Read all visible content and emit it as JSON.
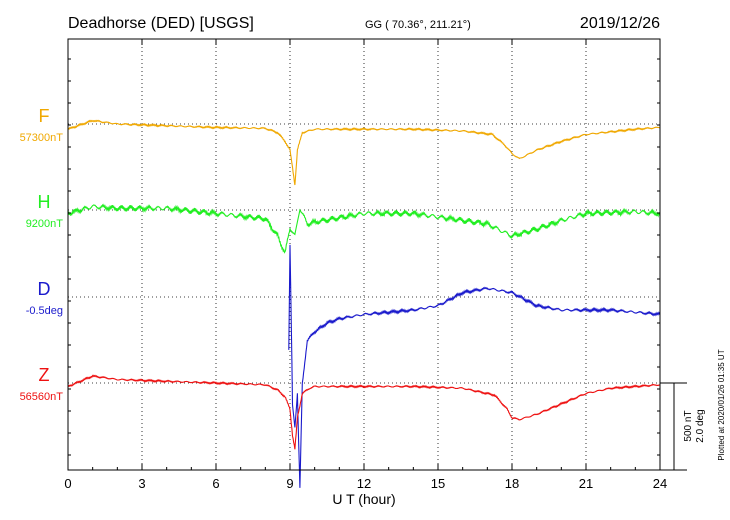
{
  "header": {
    "title": "Deadhorse (DED)  [USGS]",
    "coords": "GG ( 70.36°, 211.21°)",
    "date": "2019/12/26"
  },
  "plotted_note": "Plotted at 2020/01/26 01:35 UT",
  "scale_bar": {
    "nt": "500 nT",
    "deg": "2.0 deg"
  },
  "chart_data": {
    "type": "line",
    "xlabel": "U T (hour)",
    "xlim": [
      0,
      24
    ],
    "xticks": [
      0,
      3,
      6,
      9,
      12,
      15,
      18,
      21,
      24
    ],
    "grid": true,
    "series": [
      {
        "name": "F",
        "baseline_label": "57300nT",
        "color": "#f0a800",
        "x": [
          0,
          1,
          2,
          4,
          6,
          8,
          8.5,
          8.8,
          9.0,
          9.1,
          9.2,
          9.3,
          9.5,
          10,
          12,
          14,
          16,
          17.2,
          17.7,
          18,
          18.3,
          19,
          20,
          21,
          23,
          24
        ],
        "y": [
          -30,
          20,
          0,
          -10,
          -20,
          -25,
          -50,
          -100,
          -150,
          -250,
          -350,
          -150,
          -50,
          -30,
          -30,
          -30,
          -40,
          -60,
          -120,
          -170,
          -200,
          -150,
          -100,
          -60,
          -30,
          -20
        ]
      },
      {
        "name": "H",
        "baseline_label": "9200nT",
        "color": "#22ee22",
        "x": [
          0,
          1,
          2,
          4,
          6,
          8,
          8.5,
          8.8,
          9.0,
          9.2,
          9.4,
          9.7,
          10,
          12,
          14,
          15,
          17,
          18,
          18.5,
          19,
          20,
          21,
          23,
          24
        ],
        "y": [
          -20,
          20,
          10,
          10,
          -20,
          -50,
          -150,
          -250,
          -100,
          -150,
          10,
          -80,
          -70,
          -20,
          -20,
          -40,
          -80,
          -150,
          -130,
          -110,
          -60,
          -20,
          -10,
          -20
        ]
      },
      {
        "name": "D",
        "baseline_label": "-0.5deg",
        "color": "#1a1acc",
        "x": [
          8.95,
          9.0,
          9.05,
          9.1,
          9.2,
          9.3,
          9.4,
          9.5,
          9.7,
          10,
          10.5,
          11,
          12,
          14,
          15,
          16,
          17,
          18,
          19,
          20,
          22,
          24
        ],
        "y": [
          -1.2,
          1.2,
          -0.5,
          -2.5,
          -3.0,
          -2.2,
          -4.4,
          -2.0,
          -1.0,
          -0.8,
          -0.6,
          -0.5,
          -0.4,
          -0.3,
          -0.2,
          0.1,
          0.2,
          0.1,
          -0.2,
          -0.3,
          -0.3,
          -0.4
        ]
      },
      {
        "name": "Z",
        "baseline_label": "56560nT",
        "color": "#ee1111",
        "x": [
          0,
          1,
          2,
          4,
          6,
          8,
          8.5,
          8.8,
          9.0,
          9.1,
          9.2,
          9.3,
          9.5,
          9.8,
          10,
          12,
          14,
          16,
          17.3,
          17.8,
          18,
          18.3,
          19,
          20,
          21,
          22,
          24
        ],
        "y": [
          -20,
          40,
          20,
          10,
          0,
          -10,
          -40,
          -80,
          -150,
          -300,
          -380,
          -200,
          -60,
          -30,
          -20,
          -20,
          -20,
          -30,
          -70,
          -150,
          -200,
          -210,
          -180,
          -120,
          -60,
          -30,
          -10
        ]
      }
    ]
  }
}
